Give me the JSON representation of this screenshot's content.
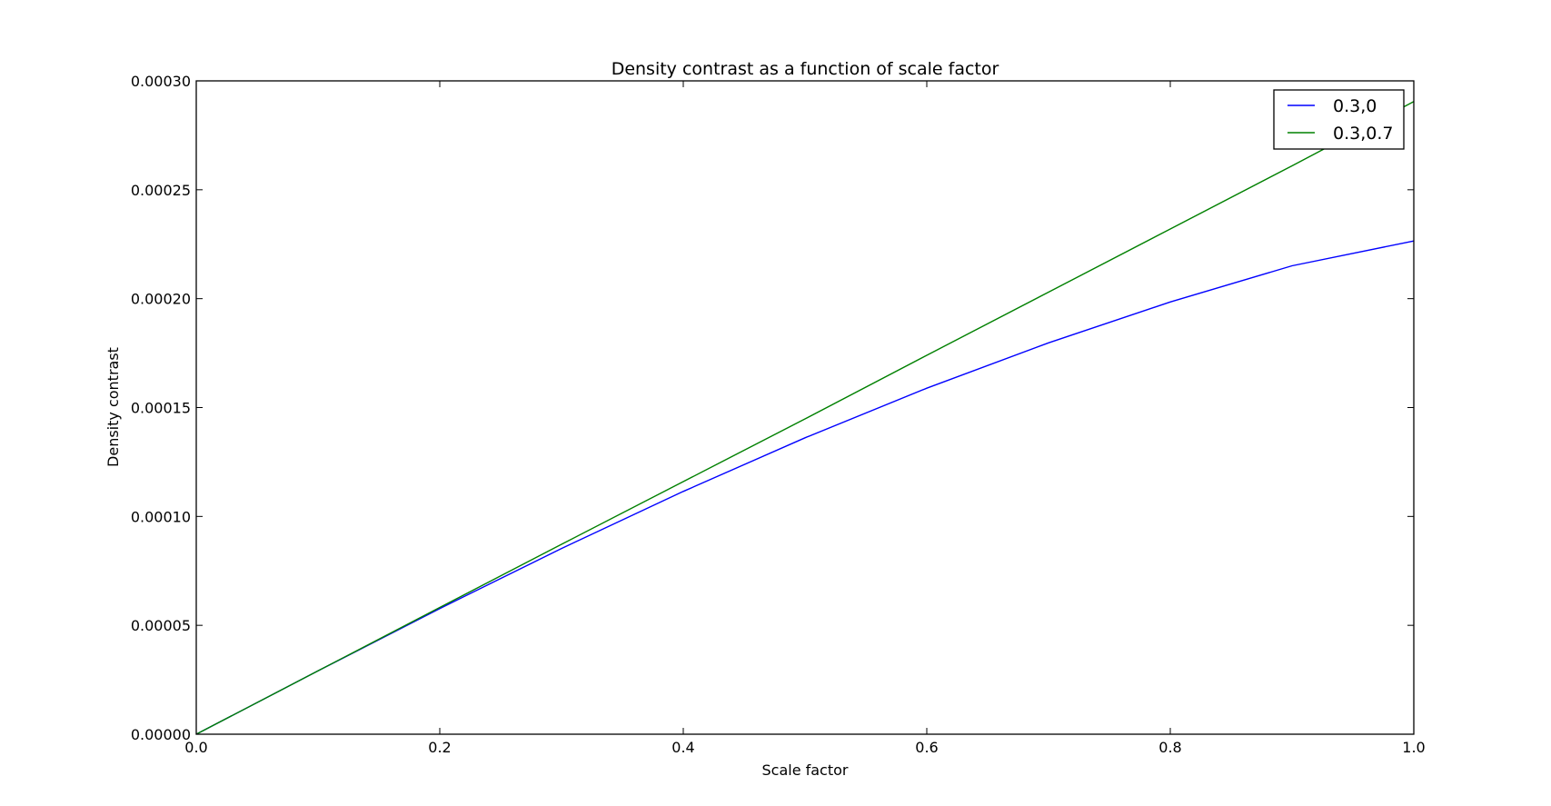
{
  "chart_data": {
    "type": "line",
    "title": "Density contrast as a function of scale factor",
    "xlabel": "Scale factor",
    "ylabel": "Density contrast",
    "xlim": [
      0.0,
      1.0
    ],
    "ylim": [
      0.0,
      0.0003
    ],
    "xticks": [
      "0.0",
      "0.2",
      "0.4",
      "0.6",
      "0.8",
      "1.0"
    ],
    "yticks": [
      "0.00000",
      "0.00005",
      "0.00010",
      "0.00015",
      "0.00020",
      "0.00025",
      "0.00030"
    ],
    "grid": false,
    "legend_position": "top-right",
    "x": [
      0.0,
      0.1,
      0.2,
      0.3,
      0.4,
      0.5,
      0.6,
      0.7,
      0.8,
      0.9,
      1.0
    ],
    "series": [
      {
        "name": "0.3,0",
        "color": "#0000ff",
        "values": [
          0.0,
          2.91e-05,
          5.77e-05,
          8.53e-05,
          0.0001115,
          0.0001361,
          0.0001589,
          0.0001797,
          0.0001985,
          0.0002151,
          0.0002265
        ]
      },
      {
        "name": "0.3,0.7",
        "color": "#008000",
        "values": [
          0.0,
          2.91e-05,
          5.82e-05,
          8.72e-05,
          0.000116,
          0.0001448,
          0.000174,
          0.000203,
          0.000232,
          0.000261,
          0.0002905
        ]
      }
    ]
  }
}
